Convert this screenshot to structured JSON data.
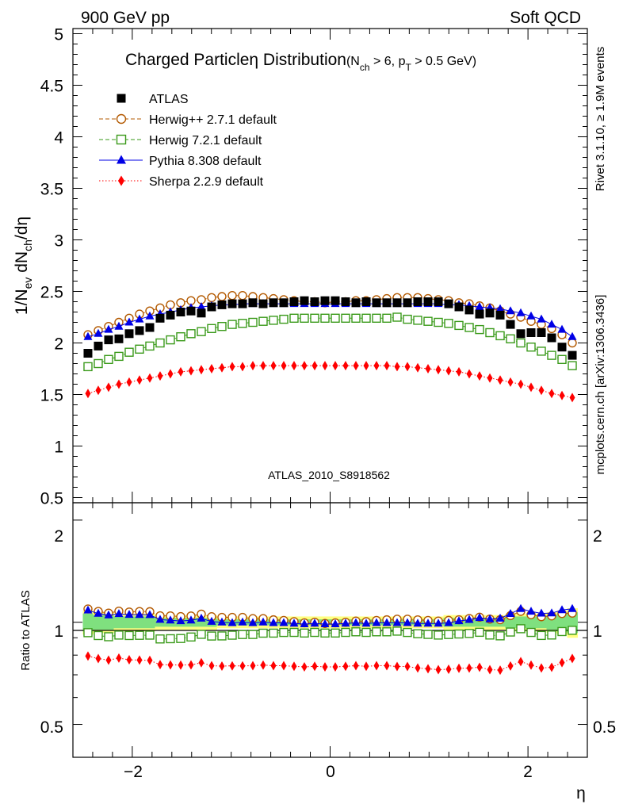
{
  "header": {
    "left": "900 GeV pp",
    "right": "Soft QCD"
  },
  "side": {
    "rivet": "Rivet 3.1.10, ≥ 1.9M events",
    "mcplots": "mcplots.cern.ch [arXiv:1306.3436]"
  },
  "colors": {
    "atlas": "#000000",
    "herwigpp": "#b35900",
    "herwig7": "#3a9a1a",
    "pythia": "#0000e6",
    "sherpa": "#ff0000",
    "band_inner": "#7fe07f",
    "band_outer": "#ffff80",
    "analysis_label": "#999999",
    "side_label": "#888888"
  },
  "chart_data": {
    "type": "scatter",
    "title": {
      "main": "Charged Particleη Distribution",
      "cut_open": "(N",
      "cut_sub1": "ch",
      "cut_mid": " > 6, p",
      "cut_sub2": "T",
      "cut_close": " > 0.5 GeV)"
    },
    "analysis_id": "ATLAS_2010_S8918562",
    "ylabel": {
      "p1": "1/N",
      "s1": "ev",
      "p2": " dN",
      "s2": "ch",
      "p3": "/dη"
    },
    "xlabel": "η",
    "ratio_ylabel": "Ratio to ATLAS",
    "xlim": [
      -2.6,
      2.6
    ],
    "ylim": [
      0.45,
      5.05
    ],
    "ratio_ylim": [
      0.4,
      2.25
    ],
    "x_ticks": [
      "−2",
      "0",
      "2"
    ],
    "y_ticks": [
      "0.5",
      "1",
      "1.5",
      "2",
      "2.5",
      "3",
      "3.5",
      "4",
      "4.5",
      "5"
    ],
    "ratio_ticks_left": [
      "0.5",
      "1",
      "2"
    ],
    "ratio_ticks_right": [
      "0.5",
      "1",
      "2"
    ],
    "legend_position": "top-left",
    "series": [
      {
        "name": "ATLAS",
        "marker": "filled-square",
        "values": [
          1.9,
          1.97,
          2.03,
          2.04,
          2.09,
          2.12,
          2.15,
          2.24,
          2.27,
          2.3,
          2.31,
          2.29,
          2.35,
          2.37,
          2.38,
          2.38,
          2.39,
          2.38,
          2.39,
          2.39,
          2.4,
          2.41,
          2.4,
          2.41,
          2.41,
          2.4,
          2.39,
          2.4,
          2.39,
          2.39,
          2.39,
          2.39,
          2.4,
          2.4,
          2.4,
          2.38,
          2.35,
          2.32,
          2.28,
          2.29,
          2.27,
          2.18,
          2.09,
          2.1,
          2.1,
          2.05,
          1.96,
          1.88
        ]
      },
      {
        "name": "Herwig++ 2.7.1 default",
        "marker": "open-circle",
        "line": "dashed",
        "values": [
          2.08,
          2.12,
          2.16,
          2.2,
          2.24,
          2.28,
          2.31,
          2.34,
          2.37,
          2.39,
          2.41,
          2.42,
          2.44,
          2.45,
          2.46,
          2.46,
          2.45,
          2.44,
          2.43,
          2.42,
          2.41,
          2.4,
          2.4,
          2.39,
          2.4,
          2.4,
          2.41,
          2.41,
          2.42,
          2.43,
          2.44,
          2.44,
          2.44,
          2.43,
          2.42,
          2.41,
          2.39,
          2.38,
          2.36,
          2.34,
          2.31,
          2.28,
          2.25,
          2.21,
          2.18,
          2.14,
          2.08,
          2.0
        ]
      },
      {
        "name": "Herwig 7.2.1 default",
        "marker": "open-square",
        "line": "dashed",
        "values": [
          1.77,
          1.8,
          1.84,
          1.87,
          1.91,
          1.94,
          1.97,
          2.0,
          2.03,
          2.06,
          2.09,
          2.11,
          2.14,
          2.16,
          2.18,
          2.19,
          2.2,
          2.21,
          2.22,
          2.23,
          2.24,
          2.24,
          2.24,
          2.24,
          2.24,
          2.24,
          2.24,
          2.24,
          2.24,
          2.24,
          2.25,
          2.23,
          2.22,
          2.21,
          2.2,
          2.19,
          2.17,
          2.15,
          2.13,
          2.1,
          2.07,
          2.04,
          2.0,
          1.96,
          1.92,
          1.88,
          1.84,
          1.78
        ]
      },
      {
        "name": "Pythia 8.308 default",
        "marker": "filled-triangle",
        "line": "solid",
        "values": [
          2.06,
          2.09,
          2.13,
          2.16,
          2.2,
          2.23,
          2.26,
          2.28,
          2.3,
          2.32,
          2.34,
          2.35,
          2.36,
          2.37,
          2.37,
          2.38,
          2.38,
          2.38,
          2.38,
          2.38,
          2.38,
          2.38,
          2.38,
          2.38,
          2.38,
          2.38,
          2.38,
          2.38,
          2.38,
          2.38,
          2.38,
          2.38,
          2.38,
          2.38,
          2.38,
          2.37,
          2.37,
          2.36,
          2.35,
          2.34,
          2.33,
          2.31,
          2.29,
          2.26,
          2.23,
          2.18,
          2.13,
          2.06
        ]
      },
      {
        "name": "Sherpa 2.2.9 default",
        "marker": "filled-diamond",
        "line": "dotted",
        "values": [
          1.51,
          1.54,
          1.57,
          1.6,
          1.62,
          1.64,
          1.66,
          1.68,
          1.7,
          1.72,
          1.73,
          1.74,
          1.75,
          1.76,
          1.77,
          1.77,
          1.78,
          1.78,
          1.78,
          1.78,
          1.78,
          1.78,
          1.78,
          1.78,
          1.78,
          1.78,
          1.78,
          1.78,
          1.78,
          1.78,
          1.77,
          1.77,
          1.76,
          1.75,
          1.74,
          1.73,
          1.72,
          1.7,
          1.68,
          1.66,
          1.64,
          1.62,
          1.6,
          1.57,
          1.54,
          1.51,
          1.49,
          1.47
        ]
      }
    ],
    "band_halfwidth_inner": [
      0.06,
      0.05,
      0.05,
      0.04,
      0.04,
      0.04,
      0.04,
      0.03,
      0.03,
      0.03,
      0.03,
      0.03,
      0.03,
      0.02,
      0.02,
      0.02,
      0.02,
      0.02,
      0.02,
      0.02,
      0.02,
      0.02,
      0.02,
      0.02,
      0.02,
      0.02,
      0.02,
      0.02,
      0.02,
      0.02,
      0.02,
      0.02,
      0.02,
      0.02,
      0.02,
      0.03,
      0.03,
      0.03,
      0.03,
      0.03,
      0.03,
      0.04,
      0.04,
      0.04,
      0.04,
      0.05,
      0.06,
      0.07
    ],
    "band_halfwidth_outer": [
      0.08,
      0.07,
      0.07,
      0.06,
      0.06,
      0.06,
      0.06,
      0.05,
      0.05,
      0.05,
      0.05,
      0.05,
      0.05,
      0.04,
      0.04,
      0.04,
      0.04,
      0.04,
      0.04,
      0.04,
      0.04,
      0.04,
      0.04,
      0.04,
      0.04,
      0.04,
      0.04,
      0.04,
      0.04,
      0.04,
      0.04,
      0.04,
      0.04,
      0.04,
      0.04,
      0.05,
      0.05,
      0.05,
      0.05,
      0.05,
      0.05,
      0.06,
      0.06,
      0.06,
      0.06,
      0.07,
      0.08,
      0.1
    ]
  }
}
